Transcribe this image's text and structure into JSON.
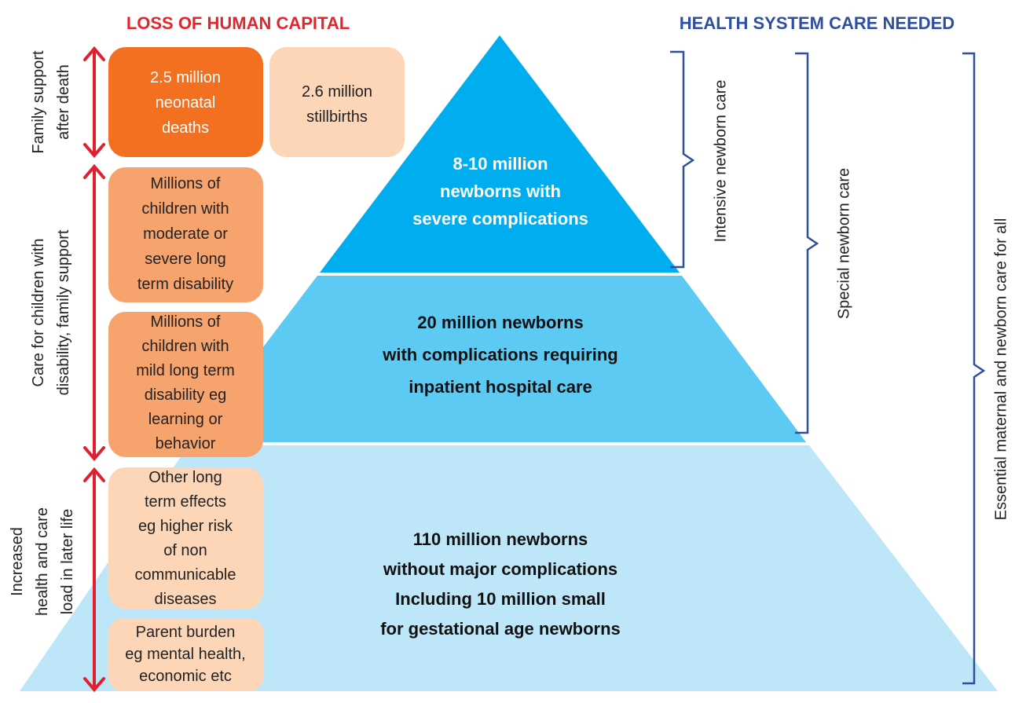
{
  "headers": {
    "left": "LOSS OF HUMAN CAPITAL",
    "right": "HEALTH SYSTEM CARE NEEDED"
  },
  "outcomes": [
    {
      "lines": [
        "2.5 million",
        "neonatal",
        "deaths"
      ]
    },
    {
      "lines": [
        "2.6 million",
        "stillbirths"
      ]
    },
    {
      "lines": [
        "Millions of",
        "children with",
        "moderate or",
        "severe long",
        "term disability"
      ]
    },
    {
      "lines": [
        "Millions of",
        "children with",
        "mild long term",
        "disability eg",
        "learning or",
        "behavior"
      ]
    },
    {
      "lines": [
        "Other long",
        "term effects",
        "eg higher risk",
        "of non",
        "communicable",
        "diseases"
      ]
    },
    {
      "lines": [
        "Parent burden",
        "eg mental health,",
        "economic etc"
      ]
    }
  ],
  "support_labels": [
    {
      "lines": [
        "Family support",
        "after death"
      ]
    },
    {
      "lines": [
        "Care for children with",
        "disability, family support"
      ]
    },
    {
      "lines": [
        "Increased",
        "health and care",
        "load in later life"
      ]
    }
  ],
  "pyramid": [
    {
      "lines": [
        "8-10 million",
        "newborns with",
        "severe complications"
      ]
    },
    {
      "lines": [
        "20 million newborns",
        "with complications requiring",
        "inpatient hospital care"
      ]
    },
    {
      "lines": [
        "110 million newborns",
        "without major complications",
        "Including 10 million small",
        "for gestational age newborns"
      ]
    }
  ],
  "care_levels": [
    {
      "label": "Intensive newborn care"
    },
    {
      "label": "Special newborn care"
    },
    {
      "label": "Essential maternal and newborn care for all"
    }
  ]
}
